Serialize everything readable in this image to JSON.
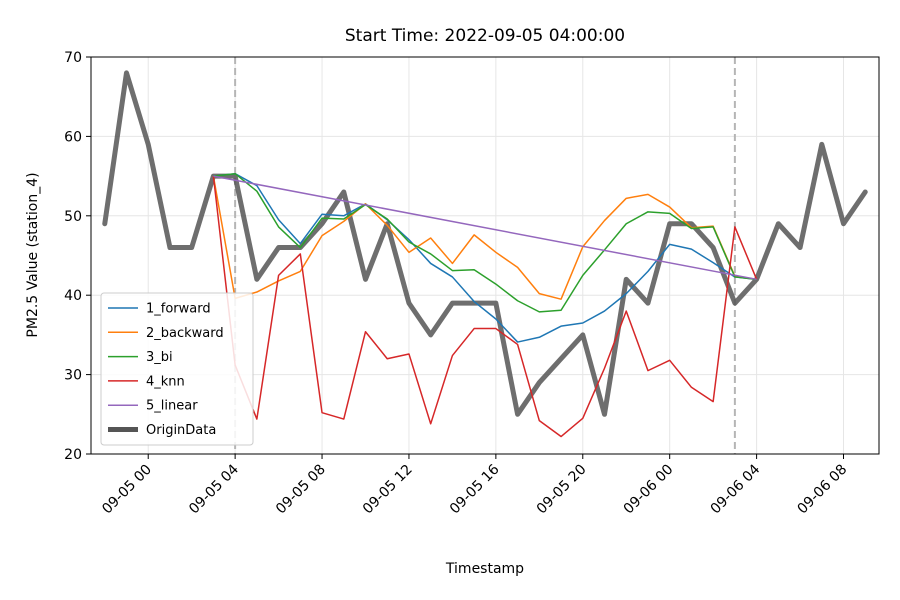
{
  "chart_data": {
    "type": "line",
    "title": "Start Time: 2022-09-05 04:00:00",
    "xlabel": "Timestamp",
    "ylabel": "PM2.5 Value (station_4)",
    "ylim": [
      20,
      70
    ],
    "xlim": [
      "2022-09-04 21:22:00",
      "2022-09-06 09:38:00"
    ],
    "yticks": [
      20,
      30,
      40,
      50,
      60,
      70
    ],
    "xticks": [
      {
        "t": "2022-09-05 00:00",
        "label": "09-05 00"
      },
      {
        "t": "2022-09-05 04:00",
        "label": "09-05 04"
      },
      {
        "t": "2022-09-05 08:00",
        "label": "09-05 08"
      },
      {
        "t": "2022-09-05 12:00",
        "label": "09-05 12"
      },
      {
        "t": "2022-09-05 16:00",
        "label": "09-05 16"
      },
      {
        "t": "2022-09-05 20:00",
        "label": "09-05 20"
      },
      {
        "t": "2022-09-06 00:00",
        "label": "09-06 00"
      },
      {
        "t": "2022-09-06 04:00",
        "label": "09-06 04"
      },
      {
        "t": "2022-09-06 08:00",
        "label": "09-06 08"
      }
    ],
    "vlines": [
      "2022-09-05 04:00",
      "2022-09-06 03:00"
    ],
    "grid": true,
    "legend_position": "lower-left",
    "series": [
      {
        "name": "1_forward",
        "color": "#1f77b4",
        "x": [
          "2022-09-05 03:00",
          "2022-09-05 04:00",
          "2022-09-05 05:00",
          "2022-09-05 06:00",
          "2022-09-05 07:00",
          "2022-09-05 08:00",
          "2022-09-05 09:00",
          "2022-09-05 10:00",
          "2022-09-05 11:00",
          "2022-09-05 12:00",
          "2022-09-05 13:00",
          "2022-09-05 14:00",
          "2022-09-05 15:00",
          "2022-09-05 16:00",
          "2022-09-05 17:00",
          "2022-09-05 18:00",
          "2022-09-05 19:00",
          "2022-09-05 20:00",
          "2022-09-05 21:00",
          "2022-09-05 22:00",
          "2022-09-05 23:00",
          "2022-09-06 00:00",
          "2022-09-06 01:00",
          "2022-09-06 02:00",
          "2022-09-06 03:00",
          "2022-09-06 04:00"
        ],
        "values": [
          55,
          55.3,
          53.8,
          49.5,
          46.5,
          50.2,
          50,
          51.5,
          49.5,
          47,
          44,
          42.3,
          39.2,
          37,
          34.1,
          34.7,
          36.1,
          36.5,
          38,
          40.2,
          43,
          46.4,
          45.8,
          44.1,
          42.3,
          42
        ]
      },
      {
        "name": "2_backward",
        "color": "#ff7f0e",
        "x": [
          "2022-09-05 03:00",
          "2022-09-05 04:00",
          "2022-09-05 05:00",
          "2022-09-05 06:00",
          "2022-09-05 07:00",
          "2022-09-05 08:00",
          "2022-09-05 09:00",
          "2022-09-05 10:00",
          "2022-09-05 11:00",
          "2022-09-05 12:00",
          "2022-09-05 13:00",
          "2022-09-05 14:00",
          "2022-09-05 15:00",
          "2022-09-05 16:00",
          "2022-09-05 17:00",
          "2022-09-05 18:00",
          "2022-09-05 19:00",
          "2022-09-05 20:00",
          "2022-09-05 21:00",
          "2022-09-05 22:00",
          "2022-09-05 23:00",
          "2022-09-06 00:00",
          "2022-09-06 01:00",
          "2022-09-06 02:00",
          "2022-09-06 03:00",
          "2022-09-06 04:00"
        ],
        "values": [
          55,
          39.6,
          40.4,
          41.8,
          43,
          47.5,
          49.3,
          51.5,
          48.8,
          45.4,
          47.2,
          44,
          47.6,
          45.4,
          43.5,
          40.2,
          39.5,
          46.1,
          49.4,
          52.2,
          52.7,
          51.1,
          48.5,
          48.7,
          42.4,
          42
        ]
      },
      {
        "name": "3_bi",
        "color": "#2ca02c",
        "x": [
          "2022-09-05 03:00",
          "2022-09-05 04:00",
          "2022-09-05 05:00",
          "2022-09-05 06:00",
          "2022-09-05 07:00",
          "2022-09-05 08:00",
          "2022-09-05 09:00",
          "2022-09-05 10:00",
          "2022-09-05 11:00",
          "2022-09-05 12:00",
          "2022-09-05 13:00",
          "2022-09-05 14:00",
          "2022-09-05 15:00",
          "2022-09-05 16:00",
          "2022-09-05 17:00",
          "2022-09-05 18:00",
          "2022-09-05 19:00",
          "2022-09-05 20:00",
          "2022-09-05 21:00",
          "2022-09-05 22:00",
          "2022-09-05 23:00",
          "2022-09-06 00:00",
          "2022-09-06 01:00",
          "2022-09-06 02:00",
          "2022-09-06 03:00",
          "2022-09-06 04:00"
        ],
        "values": [
          55,
          55.3,
          53.1,
          48.6,
          46,
          49.7,
          49.6,
          51.4,
          49.6,
          46.7,
          45.2,
          43.1,
          43.2,
          41.4,
          39.3,
          37.9,
          38.1,
          42.5,
          45.7,
          49,
          50.5,
          50.3,
          48.4,
          48.6,
          42.3,
          42
        ]
      },
      {
        "name": "4_knn",
        "color": "#d62728",
        "x": [
          "2022-09-05 03:00",
          "2022-09-05 04:00",
          "2022-09-05 05:00",
          "2022-09-05 06:00",
          "2022-09-05 07:00",
          "2022-09-05 08:00",
          "2022-09-05 09:00",
          "2022-09-05 10:00",
          "2022-09-05 11:00",
          "2022-09-05 12:00",
          "2022-09-05 13:00",
          "2022-09-05 14:00",
          "2022-09-05 15:00",
          "2022-09-05 16:00",
          "2022-09-05 17:00",
          "2022-09-05 18:00",
          "2022-09-05 19:00",
          "2022-09-05 20:00",
          "2022-09-05 21:00",
          "2022-09-05 22:00",
          "2022-09-05 23:00",
          "2022-09-06 00:00",
          "2022-09-06 01:00",
          "2022-09-06 02:00",
          "2022-09-06 03:00",
          "2022-09-06 04:00"
        ],
        "values": [
          55,
          31.2,
          24.4,
          42.5,
          45.2,
          25.2,
          24.4,
          35.4,
          32,
          32.6,
          23.8,
          32.4,
          35.8,
          35.8,
          33.8,
          24.2,
          22.2,
          24.5,
          30.8,
          38,
          30.5,
          31.8,
          28.4,
          26.6,
          48.6,
          42
        ]
      },
      {
        "name": "5_linear",
        "color": "#9467bd",
        "x": [
          "2022-09-05 03:00",
          "2022-09-06 04:00"
        ],
        "values": [
          55,
          42
        ]
      },
      {
        "name": "OriginData",
        "color": "#555555",
        "x": [
          "2022-09-04 22:00",
          "2022-09-04 23:00",
          "2022-09-05 00:00",
          "2022-09-05 01:00",
          "2022-09-05 02:00",
          "2022-09-05 03:00",
          "2022-09-05 04:00",
          "2022-09-05 05:00",
          "2022-09-05 06:00",
          "2022-09-05 07:00",
          "2022-09-05 08:00",
          "2022-09-05 09:00",
          "2022-09-05 10:00",
          "2022-09-05 11:00",
          "2022-09-05 12:00",
          "2022-09-05 13:00",
          "2022-09-05 14:00",
          "2022-09-05 15:00",
          "2022-09-05 16:00",
          "2022-09-05 17:00",
          "2022-09-05 18:00",
          "2022-09-05 19:00",
          "2022-09-05 20:00",
          "2022-09-05 21:00",
          "2022-09-05 22:00",
          "2022-09-05 23:00",
          "2022-09-06 00:00",
          "2022-09-06 01:00",
          "2022-09-06 02:00",
          "2022-09-06 03:00",
          "2022-09-06 04:00",
          "2022-09-06 05:00",
          "2022-09-06 06:00",
          "2022-09-06 07:00",
          "2022-09-06 08:00",
          "2022-09-06 09:00"
        ],
        "values": [
          49,
          68,
          59,
          46,
          46,
          55,
          55,
          42,
          46,
          46,
          49,
          53,
          42,
          49,
          39,
          35,
          39,
          39,
          39,
          25,
          29,
          32,
          35,
          25,
          42,
          39,
          49,
          49,
          46,
          39,
          42,
          49,
          46,
          59,
          49,
          53
        ]
      }
    ]
  }
}
